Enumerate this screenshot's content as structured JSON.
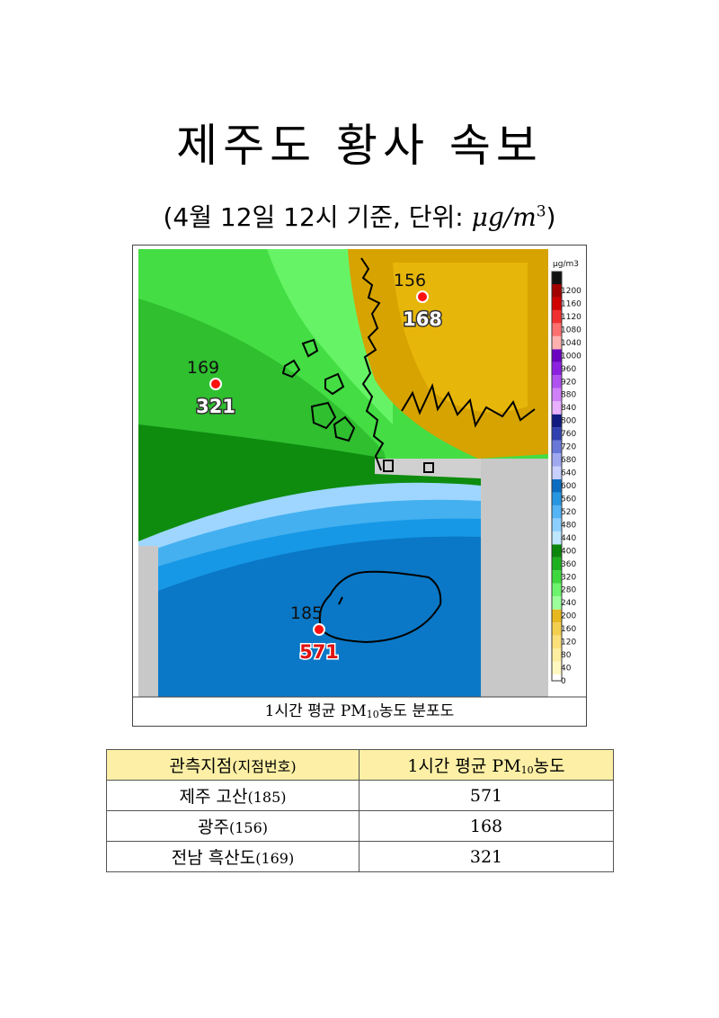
{
  "header": {
    "title": "제주도 황사 속보",
    "subtitle_prefix": "(4월 12일 12시 기준, 단위: ",
    "unit": "μg/m",
    "unit_exp": "3",
    "subtitle_suffix": ")"
  },
  "map": {
    "stations": [
      {
        "id": 156,
        "value": 168
      },
      {
        "id": 169,
        "value": 321
      },
      {
        "id": 185,
        "value": 571
      }
    ],
    "colorbar": {
      "unit": "μg/m3",
      "ticks": [
        1200,
        1160,
        1120,
        1080,
        1040,
        1000,
        960,
        920,
        880,
        840,
        800,
        760,
        720,
        680,
        640,
        600,
        560,
        520,
        480,
        440,
        400,
        360,
        320,
        280,
        240,
        200,
        160,
        120,
        80,
        40,
        0
      ],
      "colors": [
        "#fff8c0",
        "#ffeea0",
        "#fbe07a",
        "#f3cf50",
        "#e8b820",
        "#9cff9c",
        "#6cf46c",
        "#3ed83e",
        "#1fb01f",
        "#0a860a",
        "#bfe6ff",
        "#8ccfff",
        "#55b4f5",
        "#2896e0",
        "#0c6cc0",
        "#c8d0ff",
        "#a0a8f0",
        "#6878d8",
        "#3040b0",
        "#101a80",
        "#e8b0ff",
        "#d080f8",
        "#b050f0",
        "#8c20e0",
        "#6a00c0",
        "#ffb0b0",
        "#ff7070",
        "#f03030",
        "#d00000",
        "#a00000"
      ]
    },
    "caption": {
      "prefix": "1시간 평균 PM",
      "sub": "10",
      "suffix": "농도 분포도"
    }
  },
  "table": {
    "header": [
      {
        "prefix": "관측지점",
        "small": "(지점번호)"
      },
      {
        "prefix": "1시간 평균 PM",
        "sub": "10",
        "suffix": "농도"
      }
    ],
    "rows": [
      [
        {
          "name": "제주 고산",
          "code": "(185)"
        },
        571
      ],
      [
        {
          "name": "광주",
          "code": "(156)"
        },
        168
      ],
      [
        {
          "name": "전남 흑산도",
          "code": "(169)"
        },
        321
      ]
    ]
  }
}
